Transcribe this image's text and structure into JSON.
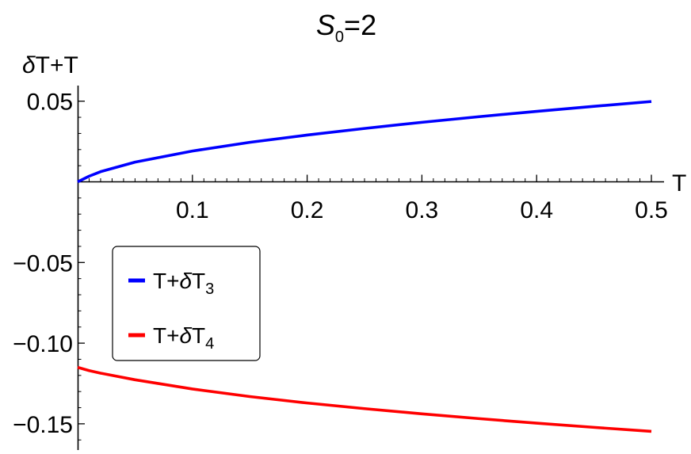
{
  "chart_data": {
    "type": "line",
    "title": {
      "text": "S",
      "sub": "0",
      "rest": "=2"
    },
    "xlabel": "T",
    "ylabel": {
      "delta": "δ",
      "rest": "T+T"
    },
    "xlim": [
      0,
      0.5
    ],
    "ylim": [
      -0.17,
      0.06
    ],
    "xticks": [
      {
        "value": 0.1,
        "label": "0.1"
      },
      {
        "value": 0.2,
        "label": "0.2"
      },
      {
        "value": 0.3,
        "label": "0.3"
      },
      {
        "value": 0.4,
        "label": "0.4"
      },
      {
        "value": 0.5,
        "label": "0.5"
      }
    ],
    "yticks": [
      {
        "value": 0.05,
        "label": "0.05"
      },
      {
        "value": -0.05,
        "label": "−0.05"
      },
      {
        "value": -0.1,
        "label": "−0.10"
      },
      {
        "value": -0.15,
        "label": "−0.15"
      }
    ],
    "grid": false,
    "legend_position": "left",
    "series": [
      {
        "legend": {
          "prefix": "T+",
          "delta": "δ",
          "letter": "T",
          "sub": "3"
        },
        "color": "#0000ff",
        "x": [
          0,
          0.01,
          0.02,
          0.05,
          0.1,
          0.15,
          0.2,
          0.25,
          0.3,
          0.35,
          0.4,
          0.45,
          0.5
        ],
        "y": [
          0,
          0.0035,
          0.0063,
          0.0122,
          0.0191,
          0.0245,
          0.029,
          0.0331,
          0.0369,
          0.0404,
          0.0437,
          0.0468,
          0.0498
        ]
      },
      {
        "legend": {
          "prefix": "T+",
          "delta": "δ",
          "letter": "T",
          "sub": "4"
        },
        "color": "#ff0000",
        "x": [
          0,
          0.01,
          0.02,
          0.05,
          0.1,
          0.15,
          0.2,
          0.25,
          0.3,
          0.35,
          0.4,
          0.45,
          0.5
        ],
        "y": [
          -0.115,
          -0.117,
          -0.1186,
          -0.1227,
          -0.1284,
          -0.1331,
          -0.1371,
          -0.1406,
          -0.1438,
          -0.1468,
          -0.1496,
          -0.1522,
          -0.1547
        ]
      }
    ]
  }
}
